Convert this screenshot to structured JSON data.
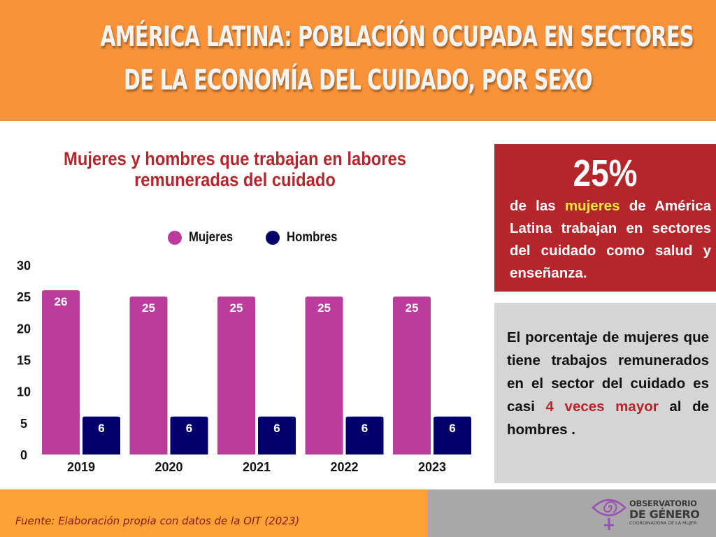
{
  "header": {
    "title_line1": "AMÉRICA LATINA: POBLACIÓN OCUPADA EN SECTORES",
    "title_line2": "DE LA ECONOMÍA DEL CUIDADO, POR SEXO"
  },
  "colors": {
    "header_bg": "#f79239",
    "mujeres": "#bb3c9c",
    "hombres": "#02006a",
    "accent_red": "#b5262c",
    "highlight_yellow": "#f5e63c",
    "gray_card": "#d5d5d5",
    "footer_orange": "#fea236",
    "footer_gray": "#a8a8a8",
    "logo_purple": "#9b4fb5"
  },
  "chart_data": {
    "type": "bar",
    "title": "Mujeres y hombres que trabajan en labores remuneradas del cuidado",
    "title_line1": "Mujeres y hombres que trabajan en labores",
    "title_line2": "remuneradas del cuidado",
    "categories": [
      "2019",
      "2020",
      "2021",
      "2022",
      "2023"
    ],
    "series": [
      {
        "name": "Mujeres",
        "values": [
          26,
          25,
          25,
          25,
          25
        ]
      },
      {
        "name": "Hombres",
        "values": [
          6,
          6,
          6,
          6,
          6
        ]
      }
    ],
    "ylim": [
      0,
      30
    ],
    "yticks": [
      "0",
      "5",
      "10",
      "15",
      "20",
      "25",
      "30"
    ],
    "xlabel": "",
    "ylabel": "",
    "grid": false,
    "data_labels": true,
    "legend_position": "top-center"
  },
  "card_highlight": {
    "value": "25%",
    "text_before": "de las",
    "highlight": "mujeres",
    "text_after": "de América Latina trabajan en sectores del cuidado como salud y enseñanza."
  },
  "card_comparison": {
    "text_before": "El porcentaje de mujeres que tiene trabajos remunerados en el sector del cuidado es casi",
    "highlight": "4 veces mayor",
    "text_after": "al de hombres ."
  },
  "footer": {
    "source": "Fuente: Elaboración propia con datos de la OIT (2023)",
    "logo_line1": "OBSERVATORIO",
    "logo_line2": "DE GÉNERO",
    "logo_line3": "COORDINADORA DE LA MUJER"
  }
}
